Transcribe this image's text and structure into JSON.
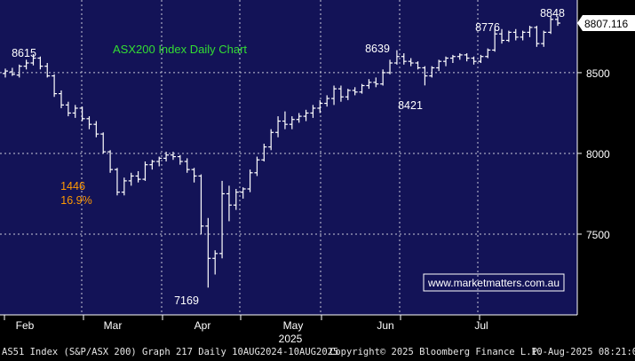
{
  "chart_data": {
    "type": "ohlc",
    "title": "ASX200 Index Daily Chart",
    "watermark": "www.marketmatters.com.au",
    "x_months": [
      "Feb",
      "Mar",
      "Apr",
      "May",
      "Jun",
      "Jul"
    ],
    "x_year": "2025",
    "y_ticks": [
      7500,
      8000,
      8500
    ],
    "ylim": [
      7000,
      8950
    ],
    "last_price": "8807.116",
    "annotations": [
      {
        "id": "high-feb",
        "text": "8615",
        "color": "#ffffff"
      },
      {
        "id": "low-apr",
        "text": "7169",
        "color": "#ffffff"
      },
      {
        "id": "high-jun",
        "text": "8639",
        "color": "#ffffff"
      },
      {
        "id": "low-jun",
        "text": "8421",
        "color": "#ffffff"
      },
      {
        "id": "high-jul",
        "text": "8776",
        "color": "#ffffff"
      },
      {
        "id": "high-aug",
        "text": "8848",
        "color": "#ffffff"
      },
      {
        "id": "drop-points",
        "text": "1446",
        "color": "#ff9900"
      },
      {
        "id": "drop-pct",
        "text": "16.9%",
        "color": "#ff9900"
      }
    ],
    "series": [
      {
        "values": [
          [
            8495,
            8525,
            8470,
            8510
          ],
          [
            8505,
            8530,
            8480,
            8490
          ],
          [
            8485,
            8550,
            8470,
            8540
          ],
          [
            8540,
            8580,
            8520,
            8560
          ],
          [
            8560,
            8615,
            8545,
            8590
          ],
          [
            8590,
            8600,
            8520,
            8540
          ],
          [
            8540,
            8560,
            8470,
            8480
          ],
          [
            8480,
            8490,
            8350,
            8370
          ],
          [
            8370,
            8390,
            8280,
            8300
          ],
          [
            8300,
            8320,
            8230,
            8250
          ],
          [
            8250,
            8300,
            8220,
            8280
          ],
          [
            8280,
            8290,
            8200,
            8215
          ],
          [
            8215,
            8230,
            8150,
            8180
          ],
          [
            8180,
            8200,
            8100,
            8120
          ],
          [
            8120,
            8130,
            8000,
            8010
          ],
          [
            8010,
            8020,
            7880,
            7900
          ],
          [
            7900,
            7910,
            7740,
            7760
          ],
          [
            7760,
            7850,
            7740,
            7830
          ],
          [
            7830,
            7880,
            7800,
            7860
          ],
          [
            7860,
            7890,
            7820,
            7840
          ],
          [
            7840,
            7950,
            7830,
            7930
          ],
          [
            7930,
            7960,
            7900,
            7950
          ],
          [
            7950,
            7980,
            7920,
            7970
          ],
          [
            7970,
            8010,
            7950,
            7990
          ],
          [
            7990,
            8010,
            7960,
            7980
          ],
          [
            7980,
            7990,
            7930,
            7950
          ],
          [
            7950,
            7970,
            7880,
            7900
          ],
          [
            7900,
            7910,
            7820,
            7860
          ],
          [
            7860,
            7870,
            7500,
            7550
          ],
          [
            7550,
            7600,
            7169,
            7350
          ],
          [
            7350,
            7400,
            7250,
            7380
          ],
          [
            7380,
            7830,
            7350,
            7750
          ],
          [
            7750,
            7800,
            7580,
            7680
          ],
          [
            7680,
            7780,
            7650,
            7760
          ],
          [
            7760,
            7790,
            7720,
            7780
          ],
          [
            7780,
            7900,
            7760,
            7880
          ],
          [
            7880,
            7980,
            7860,
            7960
          ],
          [
            7960,
            8060,
            7950,
            8040
          ],
          [
            8040,
            8150,
            8020,
            8130
          ],
          [
            8130,
            8230,
            8100,
            8200
          ],
          [
            8200,
            8260,
            8150,
            8180
          ],
          [
            8180,
            8230,
            8150,
            8210
          ],
          [
            8210,
            8250,
            8190,
            8230
          ],
          [
            8230,
            8270,
            8200,
            8250
          ],
          [
            8250,
            8300,
            8220,
            8280
          ],
          [
            8280,
            8330,
            8250,
            8310
          ],
          [
            8310,
            8360,
            8290,
            8340
          ],
          [
            8340,
            8420,
            8300,
            8400
          ],
          [
            8400,
            8420,
            8320,
            8350
          ],
          [
            8350,
            8400,
            8330,
            8390
          ],
          [
            8390,
            8410,
            8360,
            8380
          ],
          [
            8380,
            8430,
            8370,
            8420
          ],
          [
            8420,
            8460,
            8400,
            8440
          ],
          [
            8440,
            8470,
            8410,
            8430
          ],
          [
            8430,
            8520,
            8420,
            8500
          ],
          [
            8500,
            8580,
            8490,
            8560
          ],
          [
            8560,
            8639,
            8550,
            8600
          ],
          [
            8600,
            8620,
            8550,
            8570
          ],
          [
            8570,
            8590,
            8540,
            8560
          ],
          [
            8560,
            8570,
            8520,
            8530
          ],
          [
            8530,
            8540,
            8421,
            8480
          ],
          [
            8480,
            8540,
            8470,
            8530
          ],
          [
            8530,
            8580,
            8510,
            8570
          ],
          [
            8570,
            8600,
            8540,
            8590
          ],
          [
            8590,
            8610,
            8560,
            8600
          ],
          [
            8600,
            8620,
            8580,
            8610
          ],
          [
            8610,
            8620,
            8570,
            8590
          ],
          [
            8590,
            8600,
            8550,
            8570
          ],
          [
            8570,
            8610,
            8560,
            8600
          ],
          [
            8600,
            8650,
            8590,
            8640
          ],
          [
            8640,
            8776,
            8630,
            8740
          ],
          [
            8740,
            8770,
            8680,
            8700
          ],
          [
            8700,
            8760,
            8690,
            8750
          ],
          [
            8750,
            8770,
            8700,
            8720
          ],
          [
            8720,
            8760,
            8700,
            8750
          ],
          [
            8750,
            8790,
            8720,
            8780
          ],
          [
            8780,
            8790,
            8660,
            8680
          ],
          [
            8680,
            8760,
            8660,
            8750
          ],
          [
            8750,
            8848,
            8740,
            8830
          ],
          [
            8830,
            8848,
            8790,
            8807
          ]
        ]
      }
    ]
  }
}
